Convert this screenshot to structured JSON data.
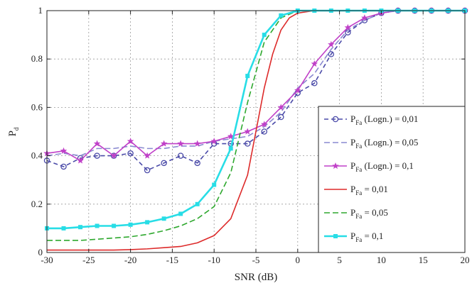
{
  "chart_data": {
    "type": "line",
    "xlabel": "SNR (dB)",
    "ylabel": "P",
    "ylabel_sub": "d",
    "xlim": [
      -30,
      20
    ],
    "ylim": [
      0,
      1
    ],
    "x_ticks": [
      -30,
      -25,
      -20,
      -15,
      -10,
      -5,
      0,
      5,
      10,
      15,
      20
    ],
    "y_ticks": [
      0,
      0.2,
      0.4,
      0.6,
      0.8,
      1
    ],
    "y_tick_labels": [
      "0",
      "0.2",
      "0.4",
      "0.6",
      "0.8",
      "1"
    ],
    "grid": true,
    "legend_position": "right",
    "series": [
      {
        "name": "P_Fa (Logn.) = 0,01",
        "legend": {
          "prefix": "P",
          "sub": "Fa",
          "suffix": " (Logn.) = 0,01"
        },
        "color": "#4a4aa8",
        "dash": "6,4",
        "marker": "circle-open",
        "x": [
          -30,
          -28,
          -26,
          -24,
          -22,
          -20,
          -18,
          -16,
          -14,
          -12,
          -10,
          -8,
          -6,
          -4,
          -2,
          0,
          2,
          4,
          6,
          8,
          10,
          12,
          14,
          16,
          18,
          20
        ],
        "y": [
          0.38,
          0.355,
          0.39,
          0.4,
          0.4,
          0.41,
          0.34,
          0.37,
          0.4,
          0.37,
          0.45,
          0.45,
          0.45,
          0.5,
          0.56,
          0.66,
          0.7,
          0.82,
          0.91,
          0.96,
          0.99,
          1.0,
          1.0,
          1.0,
          1.0,
          1.0
        ]
      },
      {
        "name": "P_Fa (Logn.) = 0,05",
        "legend": {
          "prefix": "P",
          "sub": "Fa",
          "suffix": " (Logn.) = 0,05"
        },
        "color": "#8a8ad0",
        "dash": "8,4",
        "marker": "none",
        "x": [
          -30,
          -28,
          -26,
          -24,
          -22,
          -20,
          -18,
          -16,
          -14,
          -12,
          -10,
          -8,
          -6,
          -4,
          -2,
          0,
          2,
          4,
          6,
          8,
          10,
          12,
          14,
          16,
          18,
          20
        ],
        "y": [
          0.4,
          0.41,
          0.4,
          0.43,
          0.43,
          0.44,
          0.43,
          0.43,
          0.44,
          0.44,
          0.46,
          0.47,
          0.48,
          0.52,
          0.58,
          0.68,
          0.74,
          0.84,
          0.92,
          0.96,
          0.99,
          1.0,
          1.0,
          1.0,
          1.0,
          1.0
        ]
      },
      {
        "name": "P_Fa (Logn.) = 0,1",
        "legend": {
          "prefix": "P",
          "sub": "Fa",
          "suffix": " (Logn.) = 0,1"
        },
        "color": "#c040c8",
        "dash": "",
        "marker": "star",
        "x": [
          -30,
          -28,
          -26,
          -24,
          -22,
          -20,
          -18,
          -16,
          -14,
          -12,
          -10,
          -8,
          -6,
          -4,
          -2,
          0,
          2,
          4,
          6,
          8,
          10,
          12,
          14,
          16,
          18,
          20
        ],
        "y": [
          0.41,
          0.42,
          0.38,
          0.45,
          0.4,
          0.46,
          0.4,
          0.45,
          0.45,
          0.45,
          0.46,
          0.48,
          0.5,
          0.53,
          0.6,
          0.67,
          0.78,
          0.86,
          0.93,
          0.97,
          0.99,
          1.0,
          1.0,
          1.0,
          1.0,
          1.0
        ]
      },
      {
        "name": "P_Fa = 0,01",
        "legend": {
          "prefix": "P",
          "sub": "Fa",
          "suffix": " = 0,01"
        },
        "color": "#dd2a2a",
        "dash": "",
        "marker": "none",
        "x": [
          -30,
          -28,
          -26,
          -24,
          -22,
          -20,
          -18,
          -16,
          -14,
          -12,
          -10,
          -8,
          -6,
          -5,
          -4,
          -3,
          -2,
          -1,
          0,
          2,
          4,
          6,
          8,
          10,
          12,
          14,
          16,
          18,
          20
        ],
        "y": [
          0.01,
          0.01,
          0.01,
          0.01,
          0.01,
          0.012,
          0.015,
          0.02,
          0.025,
          0.04,
          0.07,
          0.14,
          0.32,
          0.5,
          0.68,
          0.82,
          0.92,
          0.97,
          0.99,
          1.0,
          1.0,
          1.0,
          1.0,
          1.0,
          1.0,
          1.0,
          1.0,
          1.0,
          1.0
        ]
      },
      {
        "name": "P_Fa = 0,05",
        "legend": {
          "prefix": "P",
          "sub": "Fa",
          "suffix": " = 0,05"
        },
        "color": "#2ea82e",
        "dash": "8,4",
        "marker": "none",
        "x": [
          -30,
          -28,
          -26,
          -24,
          -22,
          -20,
          -18,
          -16,
          -14,
          -12,
          -10,
          -8,
          -6,
          -4,
          -2,
          0,
          2,
          4,
          6,
          8,
          10,
          12,
          14,
          16,
          18,
          20
        ],
        "y": [
          0.05,
          0.05,
          0.05,
          0.055,
          0.06,
          0.065,
          0.075,
          0.09,
          0.11,
          0.14,
          0.19,
          0.33,
          0.62,
          0.87,
          0.97,
          1.0,
          1.0,
          1.0,
          1.0,
          1.0,
          1.0,
          1.0,
          1.0,
          1.0,
          1.0,
          1.0
        ]
      },
      {
        "name": "P_Fa = 0,1",
        "legend": {
          "prefix": "P",
          "sub": "Fa",
          "suffix": " = 0,1"
        },
        "color": "#28dde6",
        "dash": "",
        "marker": "square",
        "x": [
          -30,
          -28,
          -26,
          -24,
          -22,
          -20,
          -18,
          -16,
          -14,
          -12,
          -10,
          -8,
          -6,
          -4,
          -2,
          0,
          2,
          4,
          6,
          8,
          10,
          12,
          14,
          16,
          18,
          20
        ],
        "y": [
          0.1,
          0.1,
          0.105,
          0.11,
          0.11,
          0.115,
          0.125,
          0.14,
          0.16,
          0.2,
          0.28,
          0.43,
          0.73,
          0.9,
          0.98,
          1.0,
          1.0,
          1.0,
          1.0,
          1.0,
          1.0,
          1.0,
          1.0,
          1.0,
          1.0,
          1.0
        ]
      }
    ]
  }
}
